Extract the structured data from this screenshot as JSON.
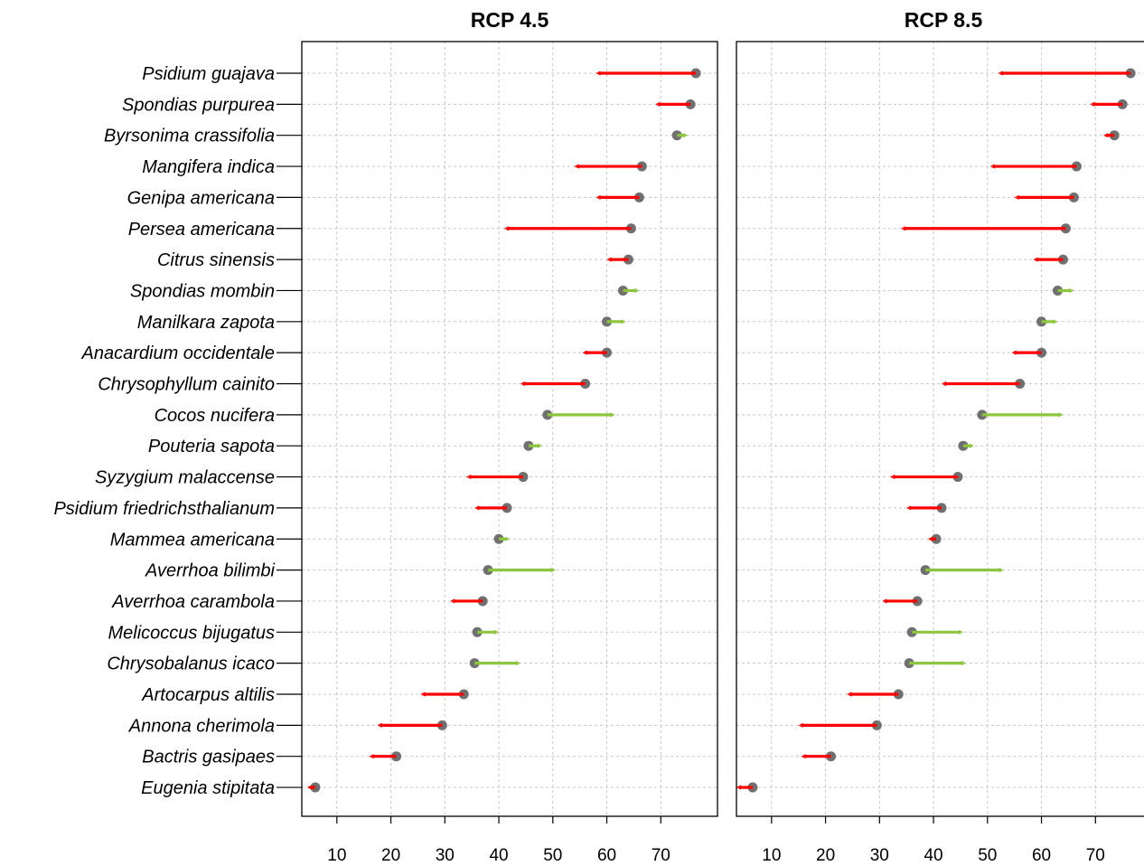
{
  "chart_data": [
    {
      "type": "arrow-dumbbell",
      "title": "RCP 4.5",
      "xlim": [
        3.5,
        80.5
      ],
      "x_ticks": [
        10,
        20,
        30,
        40,
        50,
        60,
        70
      ],
      "grid": true,
      "colors": {
        "point": "#707070",
        "decrease": "#ff0000",
        "increase": "#8cc63f"
      },
      "series": [
        {
          "name": "Psidium guajava",
          "from": 76.5,
          "to": 58.5
        },
        {
          "name": "Spondias purpurea",
          "from": 75.5,
          "to": 69.5
        },
        {
          "name": "Byrsonima crassifolia",
          "from": 73,
          "to": 74.5
        },
        {
          "name": "Mangifera indica",
          "from": 66.5,
          "to": 54.5
        },
        {
          "name": "Genipa americana",
          "from": 66,
          "to": 58.5
        },
        {
          "name": "Persea americana",
          "from": 64.5,
          "to": 41.5
        },
        {
          "name": "Citrus sinensis",
          "from": 64,
          "to": 60.5
        },
        {
          "name": "Spondias mombin",
          "from": 63,
          "to": 65.5
        },
        {
          "name": "Manilkara zapota",
          "from": 60,
          "to": 63
        },
        {
          "name": "Anacardium occidentale",
          "from": 60,
          "to": 56
        },
        {
          "name": "Chrysophyllum cainito",
          "from": 56,
          "to": 44.5
        },
        {
          "name": "Cocos nucifera",
          "from": 49,
          "to": 61
        },
        {
          "name": "Pouteria sapota",
          "from": 45.5,
          "to": 47.5
        },
        {
          "name": "Syzygium malaccense",
          "from": 44.5,
          "to": 34.5
        },
        {
          "name": "Psidium friedrichsthalianum",
          "from": 41.5,
          "to": 36
        },
        {
          "name": "Mammea americana",
          "from": 40,
          "to": 41.5
        },
        {
          "name": "Averrhoa bilimbi",
          "from": 38,
          "to": 50
        },
        {
          "name": "Averrhoa carambola",
          "from": 37,
          "to": 31.5
        },
        {
          "name": "Melicoccus bijugatus",
          "from": 36,
          "to": 39.5
        },
        {
          "name": "Chrysobalanus icaco",
          "from": 35.5,
          "to": 43.5
        },
        {
          "name": "Artocarpus altilis",
          "from": 33.5,
          "to": 26
        },
        {
          "name": "Annona cherimola",
          "from": 29.5,
          "to": 18
        },
        {
          "name": "Bactris gasipaes",
          "from": 21,
          "to": 16.5
        },
        {
          "name": "Eugenia stipitata",
          "from": 6,
          "to": 5
        }
      ]
    },
    {
      "type": "arrow-dumbbell",
      "title": "RCP 8.5",
      "xlim": [
        3.5,
        80.5
      ],
      "x_ticks": [
        10,
        20,
        30,
        40,
        50,
        60,
        70
      ],
      "grid": true,
      "colors": {
        "point": "#707070",
        "decrease": "#ff0000",
        "increase": "#8cc63f"
      },
      "series": [
        {
          "name": "Psidium guajava",
          "from": 76.5,
          "to": 52.5
        },
        {
          "name": "Spondias purpurea",
          "from": 75,
          "to": 69.5
        },
        {
          "name": "Byrsonima crassifolia",
          "from": 73.5,
          "to": 72
        },
        {
          "name": "Mangifera indica",
          "from": 66.5,
          "to": 51
        },
        {
          "name": "Genipa americana",
          "from": 66,
          "to": 55.5
        },
        {
          "name": "Persea americana",
          "from": 64.5,
          "to": 34.5
        },
        {
          "name": "Citrus sinensis",
          "from": 64,
          "to": 59
        },
        {
          "name": "Spondias mombin",
          "from": 63,
          "to": 65.5
        },
        {
          "name": "Manilkara zapota",
          "from": 60,
          "to": 62.5
        },
        {
          "name": "Anacardium occidentale",
          "from": 60,
          "to": 55
        },
        {
          "name": "Chrysophyllum cainito",
          "from": 56,
          "to": 42
        },
        {
          "name": "Cocos nucifera",
          "from": 49,
          "to": 63.5
        },
        {
          "name": "Pouteria sapota",
          "from": 45.5,
          "to": 47
        },
        {
          "name": "Syzygium malaccense",
          "from": 44.5,
          "to": 32.5
        },
        {
          "name": "Psidium friedrichsthalianum",
          "from": 41.5,
          "to": 35.5
        },
        {
          "name": "Mammea americana",
          "from": 40.5,
          "to": 39.5
        },
        {
          "name": "Averrhoa bilimbi",
          "from": 38.5,
          "to": 52.5
        },
        {
          "name": "Averrhoa carambola",
          "from": 37,
          "to": 31
        },
        {
          "name": "Melicoccus bijugatus",
          "from": 36,
          "to": 45
        },
        {
          "name": "Chrysobalanus icaco",
          "from": 35.5,
          "to": 45.5
        },
        {
          "name": "Artocarpus altilis",
          "from": 33.5,
          "to": 24.5
        },
        {
          "name": "Annona cherimola",
          "from": 29.5,
          "to": 15.5
        },
        {
          "name": "Bactris gasipaes",
          "from": 21,
          "to": 16
        },
        {
          "name": "Eugenia stipitata",
          "from": 6.5,
          "to": 4
        }
      ]
    }
  ]
}
